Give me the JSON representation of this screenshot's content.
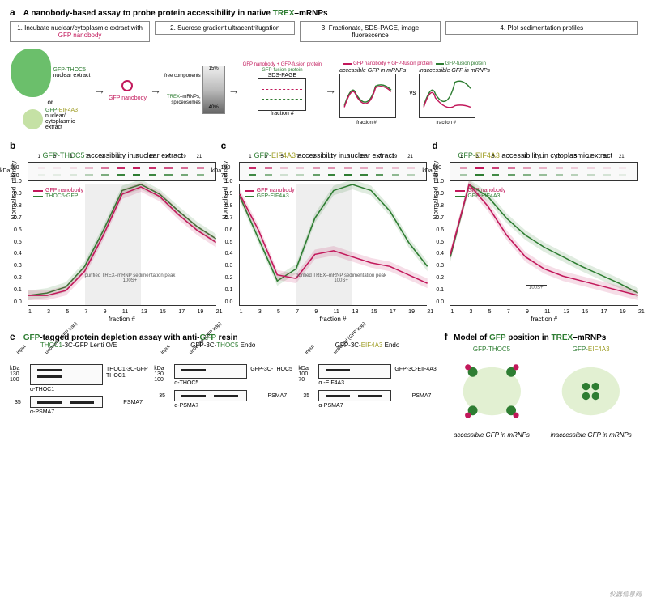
{
  "panel_a": {
    "label": "a",
    "title_prefix": "A nanobody-based assay to probe protein accessibility in native ",
    "title_highlight": "TREX",
    "title_suffix": "–mRNPs",
    "steps": [
      {
        "prefix": "1. Incubate nuclear/cytoplasmic extract with ",
        "highlight": "GFP nanobody",
        "color": "#c2185b"
      },
      {
        "text": "2. Sucrose gradient ultracentrifugation"
      },
      {
        "text": "3. Fractionate, SDS-PAGE, image fluorescence"
      },
      {
        "text": "4. Plot sedimentation profiles"
      }
    ],
    "blob1_label": "GFP-THOC5 nuclear extract",
    "blob2_label": "GFP-EIF4A3 nuclear/ cytoplasmic extract",
    "or_text": "or",
    "nanobody_label": "GFP nanobody",
    "gradient_top": "15%",
    "gradient_bottom": "40%",
    "gradient_labels": {
      "free": "free components",
      "trex": "TREX–mRNPs, spliceosomes"
    },
    "gel_labels": {
      "complex": "GFP nanobody + GFP-fusion protein",
      "fusion": "GFP-fusion protein",
      "sds": "SDS-PAGE",
      "xaxis": "fraction #"
    },
    "plot_labels": {
      "legend1": "GFP nanobody + GFP-fusion protein",
      "legend2": "GFP-fusion protein",
      "yaxis": "norm. intensity",
      "xaxis": "fraction #",
      "accessible": "accessible GFP in mRNPs",
      "inaccessible": "inaccessible GFP in mRNPs",
      "free_annot": "free",
      "mrnp_annot": "mRNPs",
      "vs": "vs"
    },
    "colors": {
      "green": "#2e7d32",
      "magenta": "#c2185b"
    }
  },
  "panel_b": {
    "label": "b",
    "title_parts": [
      "GFP-",
      "THOC5",
      " accessibility in nuclear extract"
    ],
    "title_colors": [
      "#2e7d32",
      "#2e7d32",
      "#000"
    ],
    "kda": [
      "180",
      "130"
    ],
    "fractions": [
      1,
      3,
      5,
      7,
      9,
      11,
      13,
      15,
      17,
      19,
      21
    ],
    "legend": [
      {
        "label": "GFP nanobody",
        "color": "#c2185b"
      },
      {
        "label": "THOC5-GFP",
        "color": "#2e7d32"
      }
    ],
    "ylabel": "Normalised Intensity",
    "xlabel": "fraction #",
    "ylim": [
      0.0,
      1.0
    ],
    "ytick_step": 0.1,
    "shaded_region": [
      7,
      13
    ],
    "annotation": "purified TREX–mRNP sedimentation peak",
    "annotation2": "100S+",
    "series": {
      "magenta": [
        0.08,
        0.08,
        0.12,
        0.28,
        0.58,
        0.92,
        0.98,
        0.9,
        0.75,
        0.62,
        0.52
      ],
      "green": [
        0.08,
        0.1,
        0.15,
        0.32,
        0.62,
        0.95,
        1.0,
        0.92,
        0.78,
        0.65,
        0.55
      ]
    },
    "colors": {
      "magenta": "#c2185b",
      "green": "#2e7d32",
      "shade": "#eeeeee"
    }
  },
  "panel_c": {
    "label": "c",
    "title_parts": [
      "GFP-",
      "EIF4A3",
      " accessibility in nuclear extract"
    ],
    "title_colors": [
      "#2e7d32",
      "#9e9d24",
      "#000"
    ],
    "kda": [
      "100",
      "70"
    ],
    "fractions": [
      1,
      3,
      5,
      7,
      9,
      11,
      13,
      15,
      17,
      19,
      21
    ],
    "legend": [
      {
        "label": "GFP nanobody",
        "color": "#c2185b"
      },
      {
        "label": "GFP-EIF4A3",
        "color": "#2e7d32"
      }
    ],
    "ylabel": "Normalised Intensity",
    "xlabel": "fraction #",
    "ylim": [
      0.0,
      1.0
    ],
    "ytick_step": 0.1,
    "shaded_region": [
      7,
      13
    ],
    "annotation": "purified TREX–mRNP sedimentation peak",
    "annotation2": "100S+",
    "series": {
      "magenta": [
        0.92,
        0.62,
        0.25,
        0.22,
        0.42,
        0.45,
        0.4,
        0.35,
        0.32,
        0.25,
        0.18
      ],
      "green": [
        0.9,
        0.55,
        0.2,
        0.3,
        0.72,
        0.95,
        1.0,
        0.95,
        0.78,
        0.52,
        0.32
      ]
    },
    "colors": {
      "magenta": "#c2185b",
      "green": "#2e7d32",
      "shade": "#eeeeee"
    }
  },
  "panel_d": {
    "label": "d",
    "title_parts": [
      "GFP-",
      "EIF4A3",
      " accessibility in cytoplasmic extract"
    ],
    "title_colors": [
      "#2e7d32",
      "#9e9d24",
      "#000"
    ],
    "kda": [
      "100",
      "70"
    ],
    "fractions": [
      1,
      3,
      5,
      7,
      9,
      11,
      13,
      15,
      17,
      19,
      21
    ],
    "legend": [
      {
        "label": "GFP nanobody",
        "color": "#c2185b"
      },
      {
        "label": "GFP-EIF4A3",
        "color": "#2e7d32"
      }
    ],
    "ylabel": "Normalised Intensity",
    "xlabel": "fraction #",
    "ylim": [
      0.0,
      1.0
    ],
    "ytick_step": 0.1,
    "annotation2": "100S+",
    "series": {
      "magenta": [
        0.42,
        1.0,
        0.82,
        0.58,
        0.4,
        0.3,
        0.24,
        0.2,
        0.16,
        0.12,
        0.08
      ],
      "green": [
        0.4,
        1.0,
        0.9,
        0.72,
        0.58,
        0.48,
        0.4,
        0.32,
        0.25,
        0.18,
        0.1
      ]
    },
    "colors": {
      "magenta": "#c2185b",
      "green": "#2e7d32"
    }
  },
  "panel_e": {
    "label": "e",
    "title_parts": [
      "GFP",
      "-tagged protein depletion assay with anti-",
      "GFP",
      " resin"
    ],
    "title_colors": [
      "#2e7d32",
      "#000",
      "#2e7d32",
      "#000"
    ],
    "lanes": [
      "input",
      "unbound (GFP trap)"
    ],
    "columns": [
      {
        "header_parts": [
          "THOC1",
          "-3C-GFP Lenti O/E"
        ],
        "header_colors": [
          "#2e7d32",
          "#000"
        ],
        "kda": [
          "130",
          "100"
        ],
        "bands": [
          "THOC1-3C-GFP",
          "THOC1"
        ],
        "ab1": "α-THOC1",
        "kda2": "35",
        "band2": "PSMA7",
        "ab2": "α-PSMA7"
      },
      {
        "header_parts": [
          "GFP-3C-",
          "THOC5",
          " Endo"
        ],
        "header_colors": [
          "#000",
          "#2e7d32",
          "#000"
        ],
        "kda": [
          "130",
          "100"
        ],
        "bands": [
          "GFP-3C-THOC5"
        ],
        "ab1": "α-THOC5",
        "kda2": "35",
        "band2": "PSMA7",
        "ab2": "α-PSMA7"
      },
      {
        "header_parts": [
          "GFP-3C-",
          "EIF4A3",
          " Endo"
        ],
        "header_colors": [
          "#000",
          "#9e9d24",
          "#000"
        ],
        "kda": [
          "100",
          "70"
        ],
        "bands": [
          "GFP-3C-EIF4A3"
        ],
        "ab1": "α -EIF4A3",
        "kda2": "35",
        "band2": "PSMA7",
        "ab2": "α-PSMA7"
      }
    ]
  },
  "panel_f": {
    "label": "f",
    "title_parts": [
      "Model of ",
      "GFP",
      " position in ",
      "TREX",
      "–mRNPs"
    ],
    "title_colors": [
      "#000",
      "#2e7d32",
      "#000",
      "#2e7d32",
      "#000"
    ],
    "model1_label": "GFP-THOC5",
    "model2_label": "GFP-EIF4A3",
    "caption1": "accessible GFP in mRNPs",
    "caption2": "inaccessible GFP in mRNPs",
    "colors": {
      "body": "#c5e1a5",
      "gfp": "#2e7d32",
      "nb": "#c2185b"
    }
  },
  "watermark": "仪器信息网"
}
